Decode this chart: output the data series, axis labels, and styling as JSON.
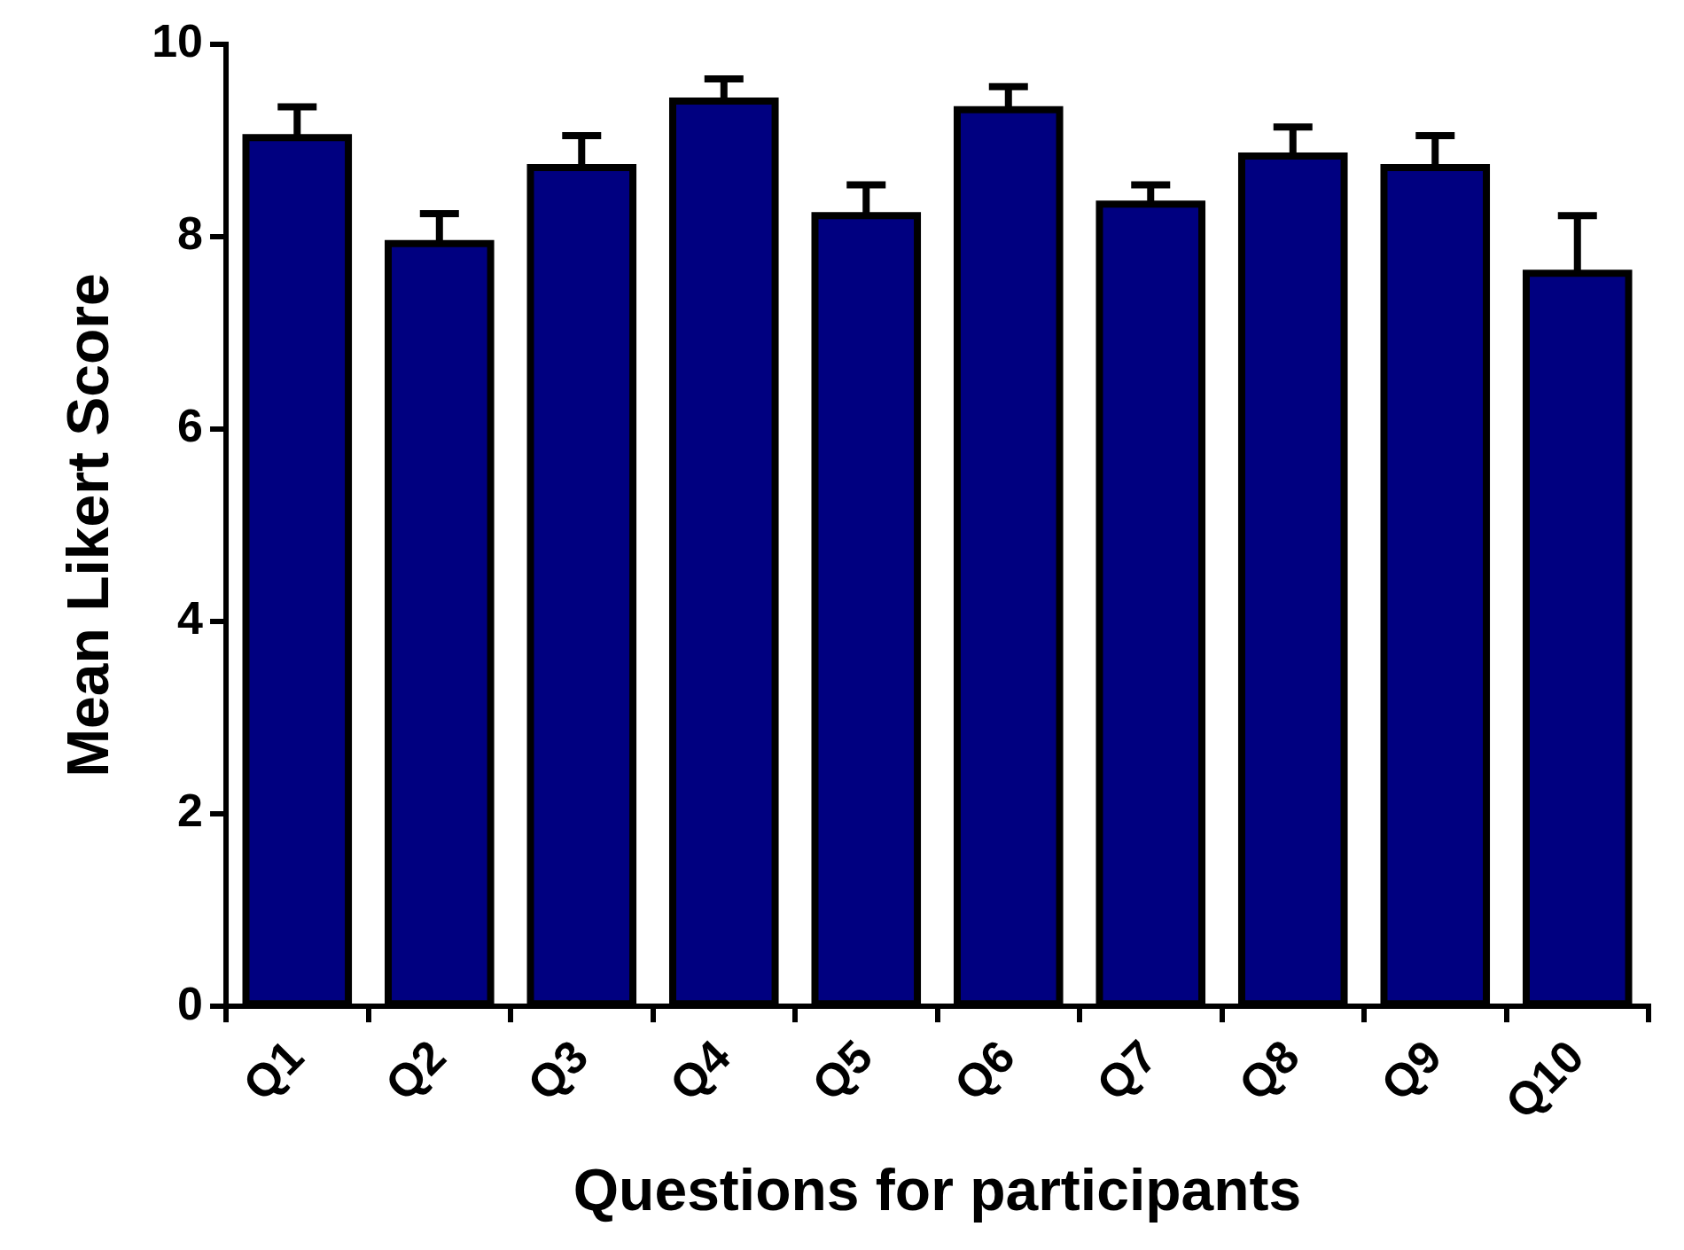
{
  "chart_data": {
    "type": "bar",
    "xlabel": "Questions for participants",
    "ylabel": "Mean Likert Score",
    "categories": [
      "Q1",
      "Q2",
      "Q3",
      "Q4",
      "Q5",
      "Q6",
      "Q7",
      "Q8",
      "Q9",
      "Q10"
    ],
    "values": [
      9.03,
      7.93,
      8.72,
      9.41,
      8.22,
      9.32,
      8.34,
      8.84,
      8.72,
      7.62
    ],
    "errors": [
      0.32,
      0.31,
      0.33,
      0.23,
      0.32,
      0.24,
      0.2,
      0.3,
      0.33,
      0.6
    ],
    "color": "#000080",
    "ylim": [
      0,
      10
    ],
    "yticks": [
      0,
      2,
      4,
      6,
      8,
      10
    ],
    "grid": false,
    "legend": false
  }
}
